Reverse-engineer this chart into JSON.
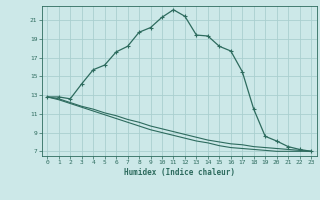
{
  "title": "",
  "xlabel": "Humidex (Indice chaleur)",
  "bg_color": "#cce8e8",
  "grid_color": "#aacfcf",
  "line_color": "#2d6b5e",
  "xlim": [
    -0.5,
    23.5
  ],
  "ylim": [
    6.5,
    22.5
  ],
  "xticks": [
    0,
    1,
    2,
    3,
    4,
    5,
    6,
    7,
    8,
    9,
    10,
    11,
    12,
    13,
    14,
    15,
    16,
    17,
    18,
    19,
    20,
    21,
    22,
    23
  ],
  "yticks": [
    7,
    9,
    11,
    13,
    15,
    17,
    19,
    21
  ],
  "curve1_x": [
    0,
    1,
    2,
    3,
    4,
    5,
    6,
    7,
    8,
    9,
    10,
    11,
    12,
    13,
    14,
    15,
    16,
    17,
    18,
    19,
    20,
    21,
    22,
    23
  ],
  "curve1_y": [
    12.8,
    12.8,
    12.6,
    14.2,
    15.7,
    16.2,
    17.6,
    18.2,
    19.7,
    20.2,
    21.3,
    22.1,
    21.4,
    19.4,
    19.3,
    18.2,
    17.7,
    15.5,
    11.5,
    8.6,
    8.1,
    7.5,
    7.2,
    7.0
  ],
  "curve2_x": [
    0,
    1,
    2,
    3,
    4,
    5,
    6,
    7,
    8,
    9,
    10,
    11,
    12,
    13,
    14,
    15,
    16,
    17,
    18,
    19,
    20,
    21,
    22,
    23
  ],
  "curve2_y": [
    12.8,
    12.6,
    12.2,
    11.8,
    11.5,
    11.1,
    10.8,
    10.4,
    10.1,
    9.7,
    9.4,
    9.1,
    8.8,
    8.5,
    8.2,
    8.0,
    7.8,
    7.7,
    7.5,
    7.4,
    7.3,
    7.2,
    7.1,
    7.0
  ],
  "curve3_x": [
    0,
    1,
    2,
    3,
    4,
    5,
    6,
    7,
    8,
    9,
    10,
    11,
    12,
    13,
    14,
    15,
    16,
    17,
    18,
    19,
    20,
    21,
    22,
    23
  ],
  "curve3_y": [
    12.8,
    12.5,
    12.1,
    11.7,
    11.3,
    10.9,
    10.5,
    10.1,
    9.7,
    9.3,
    9.0,
    8.7,
    8.4,
    8.1,
    7.9,
    7.6,
    7.4,
    7.3,
    7.2,
    7.1,
    7.0,
    7.0,
    7.0,
    7.0
  ]
}
